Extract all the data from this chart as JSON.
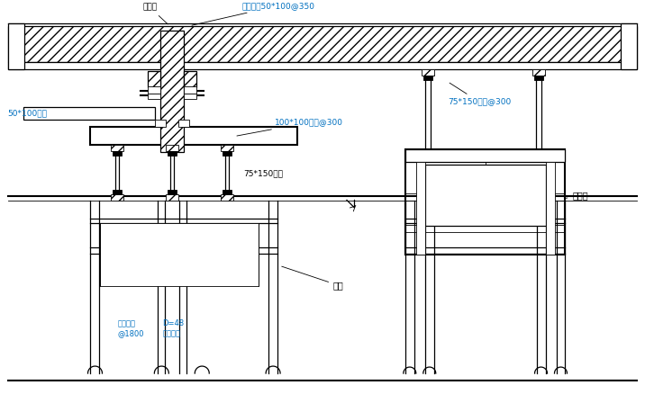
{
  "bg_color": "#ffffff",
  "line_color": "#000000",
  "blue": "#0070C0",
  "black": "#000000",
  "labels": {
    "heban": "胶合板",
    "lidang": "立档方木50*100@350",
    "fangmu50": "50*100方木",
    "fangmu100": "100*100方木@300",
    "fangmu75_150": "75*150方木",
    "fangmu75_150_right": "75*150方木@300",
    "banmenjia": "半门架",
    "menjia": "门架",
    "shuipingguan": "水平钐管\n@1800",
    "gangguanLigan": "D=48\n钐管立杆"
  },
  "figsize": [
    7.16,
    4.38
  ],
  "dpi": 100
}
